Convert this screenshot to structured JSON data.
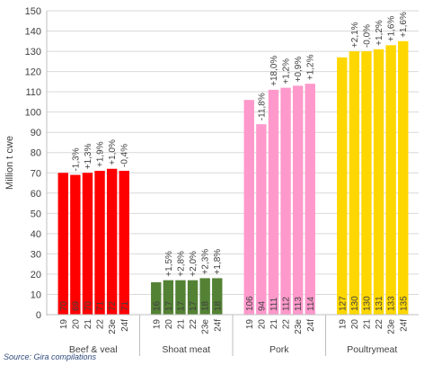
{
  "chart_data": {
    "type": "bar",
    "ylabel": "Million t cwe",
    "ylim": [
      0,
      150
    ],
    "yticks": [
      0,
      10,
      20,
      30,
      40,
      50,
      60,
      70,
      80,
      90,
      100,
      110,
      120,
      130,
      140,
      150
    ],
    "grid": true,
    "source": "Source: Gira compilations",
    "groups": [
      {
        "name": "Beef & veal",
        "color": "#ff0000",
        "categories": [
          "19",
          "20",
          "21",
          "22",
          "23e",
          "24f"
        ],
        "values": [
          70,
          69,
          70,
          71,
          72,
          71
        ],
        "changes": [
          "",
          "-1,3%",
          "+1,3%",
          "+1,9%",
          "+1,0%",
          "-0,4%"
        ]
      },
      {
        "name": "Shoat meat",
        "color": "#548235",
        "categories": [
          "19",
          "20",
          "21",
          "22",
          "23e",
          "24f"
        ],
        "values": [
          16,
          17,
          17,
          17,
          18,
          18
        ],
        "changes": [
          "",
          "+1,5%",
          "+2,8%",
          "+2,0%",
          "+2,3%",
          "+1,8%"
        ]
      },
      {
        "name": "Pork",
        "color": "#ff99cc",
        "categories": [
          "19",
          "20",
          "21",
          "22",
          "23e",
          "24f"
        ],
        "values": [
          106,
          94,
          111,
          112,
          113,
          114
        ],
        "changes": [
          "",
          "-11,8%",
          "+18,0%",
          "+1,2%",
          "+0,9%",
          "+1,2%"
        ]
      },
      {
        "name": "Poultrymeat",
        "color": "#ffd700",
        "categories": [
          "19",
          "20",
          "21",
          "22",
          "23e",
          "24f"
        ],
        "values": [
          127,
          130,
          130,
          131,
          133,
          135
        ],
        "changes": [
          "",
          "+2,1%",
          "-0,0%",
          "+1,2%",
          "+1,6%",
          "+1,6%"
        ]
      }
    ]
  }
}
